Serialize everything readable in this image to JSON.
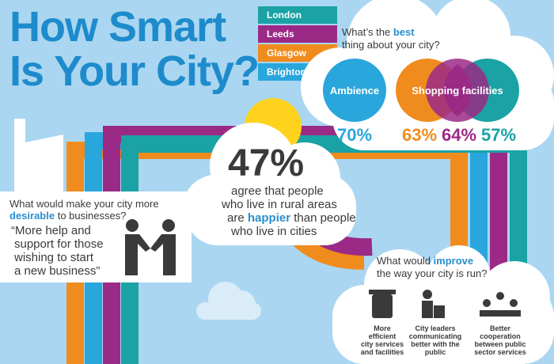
{
  "title": [
    "How Smart",
    "Is Your City?"
  ],
  "cities": [
    "London",
    "Leeds",
    "Glasgow",
    "Brighton"
  ],
  "best": {
    "question": [
      "What’s the",
      "best",
      "thing about your city?"
    ],
    "labels": [
      "Ambience",
      "Shopping facilities"
    ],
    "percentages": [
      "70%",
      "63%",
      "64%",
      "57%"
    ]
  },
  "rural": {
    "stat": "47%",
    "lines": [
      "agree that people",
      "who live in rural areas",
      "are",
      "happier",
      "than people",
      "who live in cities"
    ]
  },
  "desirable": {
    "question": [
      "What would make your city more",
      "desirable",
      "to businesses?"
    ],
    "answer": [
      "“More help and",
      "support for those",
      "wishing to start",
      "a new business”"
    ]
  },
  "improve": {
    "question": [
      "What would",
      "improve",
      "the way your city is run?"
    ],
    "items": [
      [
        "More",
        "efficient",
        "city services",
        "and facilities"
      ],
      [
        "City leaders",
        "communicating",
        "better with the",
        "public"
      ],
      [
        "Better",
        "cooperation",
        "between public",
        "sector services"
      ]
    ]
  }
}
